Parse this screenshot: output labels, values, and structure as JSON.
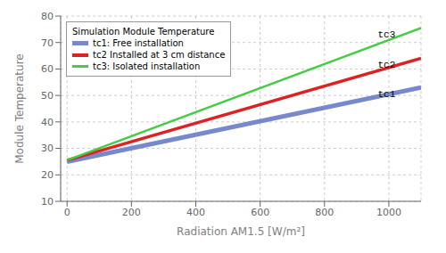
{
  "chart_data": {
    "type": "line",
    "title": "Simulation Module Temperature",
    "xlabel": "Radiation AM1.5 [W/m²]",
    "ylabel": "Module Temperature",
    "x": [
      0,
      1100
    ],
    "series": [
      {
        "name": "tc1: Free installation",
        "color": "#7788cc",
        "values": [
          25.0,
          53.0
        ]
      },
      {
        "name": "tc2 Installed at 3 cm distance",
        "color": "#dd2222",
        "values": [
          25.5,
          64.0
        ]
      },
      {
        "name": "tc3: Isolated installation",
        "color": "#44cc44",
        "values": [
          25.5,
          75.5
        ]
      }
    ],
    "xlim": [
      -20,
      1100
    ],
    "ylim": [
      10,
      80
    ],
    "xticks": [
      0,
      200,
      400,
      600,
      800,
      1000
    ],
    "yticks": [
      10,
      20,
      30,
      40,
      50,
      60,
      70,
      80
    ],
    "grid": true,
    "legend": "upper left",
    "annotations": [
      {
        "text": "tc3",
        "x": 960,
        "y": 73.0
      },
      {
        "text": "tc2",
        "x": 960,
        "y": 61.5
      },
      {
        "text": "tc1",
        "x": 960,
        "y": 50.5
      }
    ]
  }
}
